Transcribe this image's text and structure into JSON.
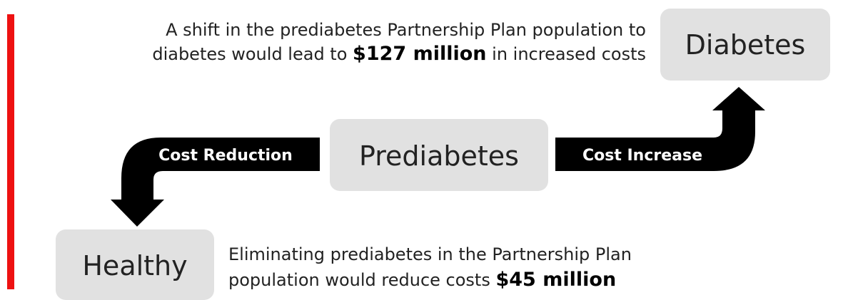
{
  "top_note": {
    "line1": "A shift in the prediabetes Partnership Plan population to",
    "line2_before": "diabetes would lead to",
    "amount": "$127 million",
    "line2_after": "in increased costs"
  },
  "nodes": [
    {
      "label": "Diabetes"
    },
    {
      "label": "Prediabetes"
    },
    {
      "label": "Healthy"
    }
  ],
  "arrows": [
    {
      "label": "Cost Reduction"
    },
    {
      "label": "Cost Increase"
    }
  ],
  "bottom_note": {
    "line1": "Eliminating prediabetes in the Partnership Plan",
    "line2_before": "population would reduce costs",
    "amount": "$45 million"
  }
}
